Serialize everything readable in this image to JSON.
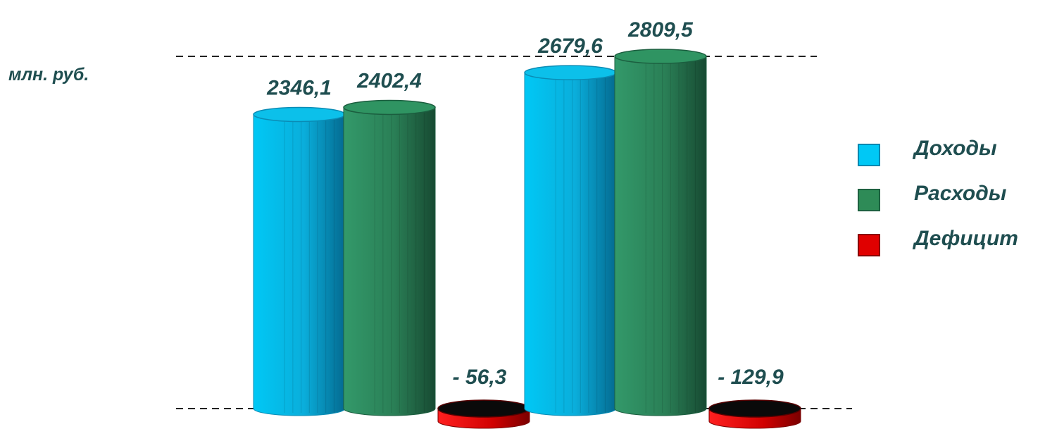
{
  "unit_label": "млн. руб.",
  "chart_data": {
    "type": "bar",
    "groups": [
      {
        "values": [
          2346.1,
          2402.4,
          -56.3
        ],
        "value_labels": [
          "2346,1",
          "2402,4",
          "- 56,3"
        ]
      },
      {
        "values": [
          2679.6,
          2809.5,
          -129.9
        ],
        "value_labels": [
          "2679,6",
          "2809,5",
          "- 129,9"
        ]
      }
    ],
    "series": [
      {
        "name": "Доходы",
        "color": "#00c8f5"
      },
      {
        "name": "Расходы",
        "color": "#2e8b57"
      },
      {
        "name": "Дефицит",
        "color": "#e00000"
      }
    ],
    "legend_position": "right",
    "reference_lines": "dashed"
  }
}
